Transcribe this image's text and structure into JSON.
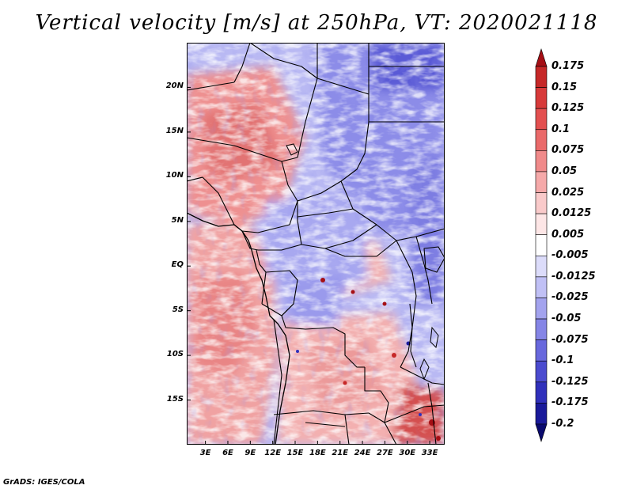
{
  "title": "Vertical velocity [m/s] at 250hPa, VT: 2020021118",
  "credit": "GrADS: IGES/COLA",
  "map": {
    "lat_ticks": [
      "20N",
      "15N",
      "10N",
      "5N",
      "EQ",
      "5S",
      "10S",
      "15S"
    ],
    "lat_values": [
      20,
      15,
      10,
      5,
      0,
      -5,
      -10,
      -15
    ],
    "lon_ticks": [
      "3E",
      "6E",
      "9E",
      "12E",
      "15E",
      "18E",
      "21E",
      "24E",
      "27E",
      "30E",
      "33E"
    ],
    "lon_values": [
      3,
      6,
      9,
      12,
      15,
      18,
      21,
      24,
      27,
      30,
      33
    ],
    "lon_range": [
      0.5,
      35
    ],
    "lat_range": [
      -20,
      25
    ]
  },
  "colorbar": {
    "labels": [
      "0.175",
      "0.15",
      "0.125",
      "0.1",
      "0.075",
      "0.05",
      "0.025",
      "0.0125",
      "0.005",
      "-0.005",
      "-0.0125",
      "-0.025",
      "-0.05",
      "-0.075",
      "-0.1",
      "-0.125",
      "-0.175",
      "-0.2"
    ],
    "colors": [
      "#a50f15",
      "#c62828",
      "#d73a3a",
      "#e35050",
      "#ea6a6a",
      "#f08a8a",
      "#f5a9a9",
      "#f9caca",
      "#fde6e6",
      "#ffffff",
      "#dcdcfa",
      "#c0c0f5",
      "#a3a3ee",
      "#8585e6",
      "#6868dd",
      "#4b4bcf",
      "#3030bb",
      "#1a1a9a",
      "#0a0a6e"
    ]
  }
}
